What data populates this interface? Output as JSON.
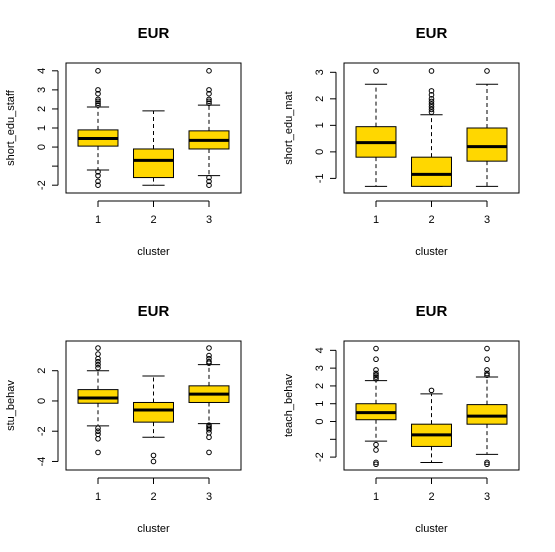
{
  "chart_data": [
    {
      "type": "boxplot",
      "title": "EUR",
      "xlabel": "cluster",
      "ylabel": "short_edu_staff",
      "categories": [
        "1",
        "2",
        "3"
      ],
      "ylim": [
        -2.2,
        4.2
      ],
      "yticks": [
        -2,
        -1,
        0,
        1,
        2,
        3,
        4
      ],
      "ytick_labels": [
        "-2",
        "",
        "0",
        "1",
        "2",
        "3",
        "4"
      ],
      "box_color": "#FFD700",
      "boxes": [
        {
          "category": "1",
          "whisker_low": -1.2,
          "q1": 0.05,
          "median": 0.45,
          "q3": 0.9,
          "whisker_high": 2.1,
          "outliers": [
            4.0,
            3.0,
            2.8,
            2.5,
            2.4,
            2.3,
            2.2,
            -1.3,
            -1.5,
            -1.8,
            -2.0
          ]
        },
        {
          "category": "2",
          "whisker_low": -2.0,
          "q1": -1.6,
          "median": -0.7,
          "q3": -0.1,
          "whisker_high": 1.9,
          "outliers": []
        },
        {
          "category": "3",
          "whisker_low": -1.5,
          "q1": -0.1,
          "median": 0.35,
          "q3": 0.85,
          "whisker_high": 2.2,
          "outliers": [
            4.0,
            3.0,
            2.8,
            2.5,
            2.4,
            2.3,
            -1.6,
            -1.8,
            -2.0
          ]
        }
      ]
    },
    {
      "type": "boxplot",
      "title": "EUR",
      "xlabel": "cluster",
      "ylabel": "short_edu_mat",
      "categories": [
        "1",
        "2",
        "3"
      ],
      "ylim": [
        -1.4,
        3.2
      ],
      "yticks": [
        -1,
        0,
        1,
        2,
        3
      ],
      "ytick_labels": [
        "-1",
        "0",
        "1",
        "2",
        "3"
      ],
      "box_color": "#FFD700",
      "boxes": [
        {
          "category": "1",
          "whisker_low": -1.3,
          "q1": -0.2,
          "median": 0.35,
          "q3": 0.95,
          "whisker_high": 2.55,
          "outliers": [
            3.05
          ]
        },
        {
          "category": "2",
          "whisker_low": -1.3,
          "q1": -1.3,
          "median": -0.85,
          "q3": -0.2,
          "whisker_high": 1.4,
          "outliers": [
            3.05,
            2.3,
            2.15,
            2.0,
            1.9,
            1.8,
            1.7,
            1.6,
            1.5
          ]
        },
        {
          "category": "3",
          "whisker_low": -1.3,
          "q1": -0.35,
          "median": 0.2,
          "q3": 0.9,
          "whisker_high": 2.55,
          "outliers": [
            3.05
          ]
        }
      ]
    },
    {
      "type": "boxplot",
      "title": "EUR",
      "xlabel": "cluster",
      "ylabel": "stu_behav",
      "categories": [
        "1",
        "2",
        "3"
      ],
      "ylim": [
        -4.3,
        3.7
      ],
      "yticks": [
        -4,
        -2,
        0,
        2
      ],
      "ytick_labels": [
        "-4",
        "-2",
        "0",
        "2"
      ],
      "box_color": "#FFD700",
      "boxes": [
        {
          "category": "1",
          "whisker_low": -1.65,
          "q1": -0.15,
          "median": 0.2,
          "q3": 0.75,
          "whisker_high": 2.0,
          "outliers": [
            3.5,
            3.1,
            2.8,
            2.6,
            2.4,
            2.2,
            -1.8,
            -2.0,
            -2.2,
            -2.5,
            -3.4
          ]
        },
        {
          "category": "2",
          "whisker_low": -2.4,
          "q1": -1.4,
          "median": -0.6,
          "q3": -0.1,
          "whisker_high": 1.65,
          "outliers": [
            -3.6,
            -4.0
          ]
        },
        {
          "category": "3",
          "whisker_low": -1.5,
          "q1": -0.1,
          "median": 0.45,
          "q3": 1.0,
          "whisker_high": 2.4,
          "outliers": [
            3.5,
            3.0,
            2.8,
            2.6,
            2.5,
            -1.6,
            -1.7,
            -1.8,
            -1.9,
            -2.1,
            -2.4,
            -3.4
          ]
        }
      ]
    },
    {
      "type": "boxplot",
      "title": "EUR",
      "xlabel": "cluster",
      "ylabel": "teach_behav",
      "categories": [
        "1",
        "2",
        "3"
      ],
      "ylim": [
        -2.5,
        4.3
      ],
      "yticks": [
        -2,
        -1,
        0,
        1,
        2,
        3,
        4
      ],
      "ytick_labels": [
        "-2",
        "",
        "0",
        "1",
        "2",
        "3",
        "4"
      ],
      "box_color": "#FFD700",
      "boxes": [
        {
          "category": "1",
          "whisker_low": -1.1,
          "q1": 0.1,
          "median": 0.5,
          "q3": 1.0,
          "whisker_high": 2.3,
          "outliers": [
            4.1,
            3.5,
            2.9,
            2.7,
            2.6,
            2.5,
            2.4,
            -1.3,
            -1.6,
            -2.3,
            -2.4
          ]
        },
        {
          "category": "2",
          "whisker_low": -2.3,
          "q1": -1.4,
          "median": -0.75,
          "q3": -0.15,
          "whisker_high": 1.55,
          "outliers": [
            1.75
          ]
        },
        {
          "category": "3",
          "whisker_low": -1.85,
          "q1": -0.15,
          "median": 0.3,
          "q3": 0.95,
          "whisker_high": 2.5,
          "outliers": [
            4.1,
            3.5,
            2.9,
            2.7,
            2.6,
            -2.3,
            -2.4
          ]
        }
      ]
    }
  ]
}
